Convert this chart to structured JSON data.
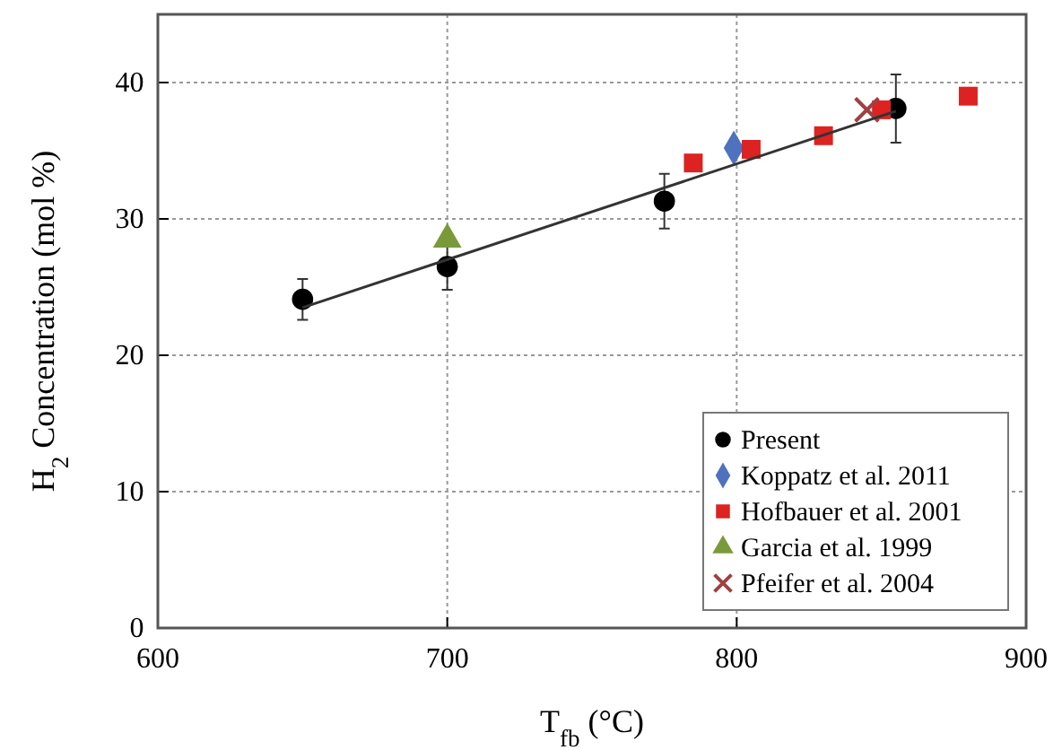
{
  "chart_data": {
    "type": "scatter",
    "xlabel": "T$_{fb}$ (°C)",
    "ylabel": "H$_{2}$ Concentration (mol %)",
    "xlim": [
      600,
      900
    ],
    "xticks": [
      600,
      700,
      800,
      900
    ],
    "ylim": [
      0,
      45
    ],
    "yticks": [
      0,
      10,
      20,
      30,
      40
    ],
    "grid": true,
    "legend": "bottom right",
    "series": [
      {
        "name": "Present",
        "color": "#000000",
        "marker": "circle",
        "x": [
          650,
          700,
          775,
          855
        ],
        "values": [
          24.1,
          26.5,
          31.3,
          38.1
        ],
        "errors": [
          1.5,
          1.7,
          2,
          2.5
        ]
      },
      {
        "name": "Koppatz et al. 2011",
        "color": "#4f72be",
        "marker": "diamond",
        "x": [
          799
        ],
        "values": [
          35.2
        ]
      },
      {
        "name": "Hofbauer et al. 2001",
        "color": "#dd2222",
        "marker": "square",
        "x": [
          785,
          805,
          830,
          850,
          880
        ],
        "values": [
          34.1,
          35.1,
          36.1,
          38,
          39
        ]
      },
      {
        "name": "Garcia et al. 1999",
        "color": "#7a9a3a",
        "marker": "triangle",
        "x": [
          700
        ],
        "values": [
          28.5
        ]
      },
      {
        "name": "Pfeifer et al. 2004",
        "color": "#a04040",
        "marker": "cross",
        "x": [
          845
        ],
        "values": [
          38
        ]
      },
      {
        "type": "line",
        "color": "#333333",
        "marker": "none",
        "x": [
          650,
          855
        ],
        "values": [
          23.5,
          37.9
        ]
      }
    ]
  }
}
